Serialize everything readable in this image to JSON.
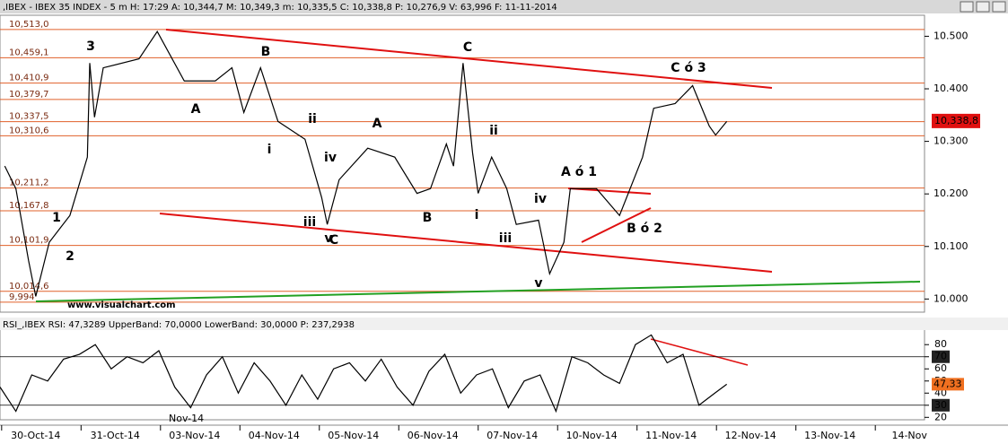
{
  "chart_data": [
    {
      "type": "line",
      "title": ",IBEX - IBEX 35 INDEX - 5 m H: 17:29 A: 10,344,7 M: 10,349,3 m: 10,335,5 C: 10,338,8 P: 10,276,9 V: 63,996 F: 11-11-2014",
      "x": [
        0.06,
        0.2,
        0.36,
        0.45,
        0.62,
        0.88,
        1.1,
        1.13,
        1.19,
        1.3,
        1.75,
        1.98,
        2.32,
        2.71,
        2.92,
        3.07,
        3.28,
        3.5,
        3.84,
        4.05,
        4.12,
        4.27,
        4.63,
        4.97,
        5.25,
        5.42,
        5.62,
        5.71,
        5.83,
        5.95,
        6.02,
        6.19,
        6.38,
        6.5,
        6.78,
        6.92,
        7.1,
        7.18,
        7.51,
        7.8,
        8.09,
        8.23,
        8.5,
        8.72,
        8.93,
        9.01,
        9.15
      ],
      "values": [
        10253,
        10210,
        10073,
        10005,
        10108,
        10159,
        10270,
        10449,
        10346,
        10440,
        10457,
        10509,
        10415,
        10415,
        10440,
        10355,
        10440,
        10338,
        10304,
        10193,
        10142,
        10227,
        10287,
        10270,
        10201,
        10210,
        10295,
        10253,
        10449,
        10278,
        10201,
        10270,
        10210,
        10142,
        10150,
        10048,
        10108,
        10210,
        10210,
        10159,
        10270,
        10363,
        10372,
        10406,
        10329,
        10312,
        10338
      ],
      "color": "#000000",
      "xlim": [
        0,
        11.64
      ],
      "ylim": [
        9975,
        10540
      ],
      "yticks": [
        {
          "value": 10000,
          "label": "10.000"
        },
        {
          "value": 10100,
          "label": "10.100"
        },
        {
          "value": 10200,
          "label": "10.200"
        },
        {
          "value": 10300,
          "label": "10.300"
        },
        {
          "value": 10400,
          "label": "10.400"
        },
        {
          "value": 10500,
          "label": "10.500"
        }
      ],
      "xticks": [
        {
          "value": 0.45,
          "label": "30-Oct-14"
        },
        {
          "value": 1.45,
          "label": "31-Oct-14"
        },
        {
          "value": 2.45,
          "label": "03-Nov-14"
        },
        {
          "value": 3.45,
          "label": "04-Nov-14"
        },
        {
          "value": 4.45,
          "label": "05-Nov-14"
        },
        {
          "value": 5.45,
          "label": "06-Nov-14"
        },
        {
          "value": 6.45,
          "label": "07-Nov-14"
        },
        {
          "value": 7.45,
          "label": "10-Nov-14"
        },
        {
          "value": 8.45,
          "label": "11-Nov-14"
        },
        {
          "value": 9.45,
          "label": "12-Nov-14"
        },
        {
          "value": 10.45,
          "label": "13-Nov-14"
        },
        {
          "value": 11.45,
          "label": "14-Nov"
        }
      ],
      "levels": [
        {
          "value": 10513.0,
          "label": "10,513,0"
        },
        {
          "value": 10459.1,
          "label": "10,459,1"
        },
        {
          "value": 10410.9,
          "label": "10,410,9"
        },
        {
          "value": 10379.7,
          "label": "10,379,7"
        },
        {
          "value": 10337.5,
          "label": "10,337,5"
        },
        {
          "value": 10310.6,
          "label": "10,310,6"
        },
        {
          "value": 10211.2,
          "label": "10,211,2"
        },
        {
          "value": 10167.8,
          "label": "10,167,8"
        },
        {
          "value": 10101.9,
          "label": "10,101,9"
        },
        {
          "value": 10014.6,
          "label": "10,014,6"
        },
        {
          "value": 9994,
          "label": "9,994"
        }
      ],
      "level_color": "#e0602a",
      "current": {
        "value": 10338.8,
        "label": "10,338,8"
      },
      "annotations": [
        {
          "text": "3",
          "color": "#1a7a1a"
        },
        {
          "text": "B",
          "color": "#e01010"
        },
        {
          "text": "C",
          "color": "#e01010"
        },
        {
          "text": "C ó 3",
          "color": "#1a7a1a"
        },
        {
          "text": "A",
          "color": "#e01010"
        },
        {
          "text": "ii",
          "color": "#e01010"
        },
        {
          "text": "A",
          "color": "#e01010"
        },
        {
          "text": "ii",
          "color": "#e01010"
        },
        {
          "text": "i",
          "color": "#e01010"
        },
        {
          "text": "iv",
          "color": "#e01010"
        },
        {
          "text": "A ó 1",
          "color": "#1a7a1a"
        },
        {
          "text": "iv",
          "color": "#e01010"
        },
        {
          "text": "1",
          "color": "#1a7a1a"
        },
        {
          "text": "B",
          "color": "#e01010"
        },
        {
          "text": "i",
          "color": "#e01010"
        },
        {
          "text": "iii",
          "color": "#e01010"
        },
        {
          "text": "B ó 2",
          "color": "#1a7a1a"
        },
        {
          "text": "C",
          "color": "#e01010"
        },
        {
          "text": "v",
          "color": "#e01010"
        },
        {
          "text": "iii",
          "color": "#e01010"
        },
        {
          "text": "2",
          "color": "#1a7a1a"
        },
        {
          "text": "v",
          "color": "#e01010"
        }
      ],
      "watermark": "www.visualchart.com"
    },
    {
      "type": "line",
      "title": "RSI_,IBEX RSI: 47,3289 UpperBand: 70,0000 LowerBand: 30,0000 P: 237,2938",
      "x": [
        0.0,
        0.2,
        0.4,
        0.6,
        0.8,
        1.0,
        1.2,
        1.4,
        1.6,
        1.8,
        2.0,
        2.2,
        2.4,
        2.6,
        2.8,
        3.0,
        3.2,
        3.4,
        3.6,
        3.8,
        4.0,
        4.2,
        4.4,
        4.6,
        4.8,
        5.0,
        5.2,
        5.4,
        5.6,
        5.8,
        6.0,
        6.2,
        6.4,
        6.6,
        6.8,
        7.0,
        7.2,
        7.4,
        7.6,
        7.8,
        8.0,
        8.2,
        8.4,
        8.6,
        8.8,
        9.0,
        9.15
      ],
      "values": [
        45,
        25,
        55,
        50,
        68,
        72,
        80,
        60,
        70,
        65,
        75,
        45,
        28,
        55,
        70,
        40,
        65,
        50,
        30,
        55,
        35,
        60,
        65,
        50,
        68,
        45,
        30,
        58,
        72,
        40,
        55,
        60,
        28,
        50,
        55,
        25,
        70,
        65,
        55,
        48,
        80,
        88,
        65,
        72,
        30,
        40,
        47.33
      ],
      "color": "#000000",
      "ylim": [
        18,
        92
      ],
      "yticks": [
        20,
        30,
        40,
        50,
        60,
        70,
        80
      ],
      "bands": [
        70,
        30
      ],
      "current": {
        "value": 47.33,
        "label": "47,33"
      },
      "period_label": "Nov-14"
    }
  ]
}
